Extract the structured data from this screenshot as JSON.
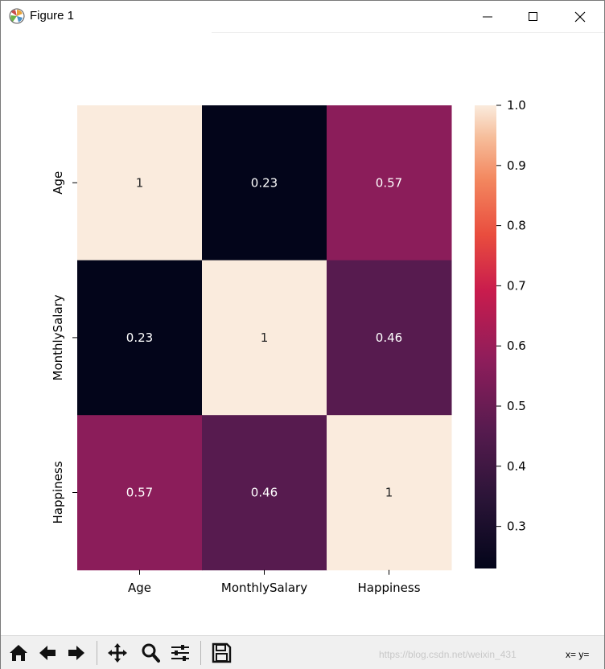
{
  "window": {
    "title": "Figure 1"
  },
  "chart_data": {
    "type": "heatmap",
    "rows": [
      "Age",
      "MonthlySalary",
      "Happiness"
    ],
    "columns": [
      "Age",
      "MonthlySalary",
      "Happiness"
    ],
    "values": [
      [
        1,
        0.23,
        0.57
      ],
      [
        0.23,
        1,
        0.46
      ],
      [
        0.57,
        0.46,
        1
      ]
    ],
    "annotations": [
      [
        "1",
        "0.23",
        "0.57"
      ],
      [
        "0.23",
        "1",
        "0.46"
      ],
      [
        "0.57",
        "0.46",
        "1"
      ]
    ],
    "colorbar": {
      "range": [
        0.23,
        1.0
      ],
      "ticks": [
        "0.3",
        "0.4",
        "0.5",
        "0.6",
        "0.7",
        "0.8",
        "0.9",
        "1.0"
      ],
      "colormap": "rocket"
    }
  },
  "toolbar": {
    "buttons": [
      "home-icon",
      "back-icon",
      "forward-icon",
      "pan-icon",
      "zoom-icon",
      "configure-subplots-icon",
      "save-icon"
    ],
    "watermark": "https://blog.csdn.net/weixin_431",
    "coordinates": "x= y="
  }
}
